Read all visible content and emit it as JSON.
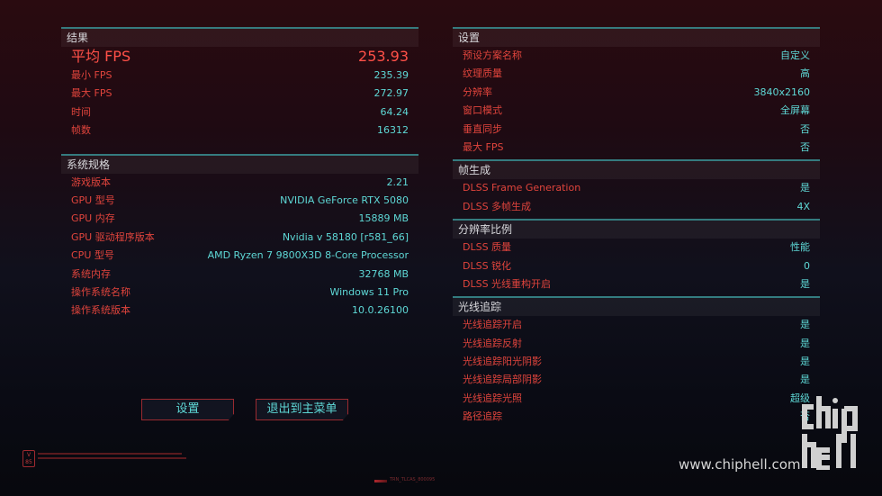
{
  "results": {
    "title": "结果",
    "avg_label": "平均 FPS",
    "avg_value": "253.93",
    "rows": [
      {
        "label": "最小 FPS",
        "value": "235.39"
      },
      {
        "label": "最大 FPS",
        "value": "272.97"
      },
      {
        "label": "时间",
        "value": "64.24"
      },
      {
        "label": "帧数",
        "value": "16312"
      }
    ]
  },
  "system": {
    "title": "系统规格",
    "rows": [
      {
        "label": "游戏版本",
        "value": "2.21"
      },
      {
        "label": "GPU 型号",
        "value": "NVIDIA GeForce RTX 5080"
      },
      {
        "label": "GPU 内存",
        "value": "15889 MB"
      },
      {
        "label": "GPU 驱动程序版本",
        "value": "Nvidia v 58180 [r581_66]"
      },
      {
        "label": "CPU 型号",
        "value": "AMD Ryzen 7 9800X3D 8-Core Processor"
      },
      {
        "label": "系统内存",
        "value": "32768 MB"
      },
      {
        "label": "操作系统名称",
        "value": "Windows 11 Pro"
      },
      {
        "label": "操作系统版本",
        "value": "10.0.26100"
      }
    ]
  },
  "settings": {
    "title": "设置",
    "rows": [
      {
        "label": "预设方案名称",
        "value": "自定义"
      },
      {
        "label": "纹理质量",
        "value": "高"
      },
      {
        "label": "分辨率",
        "value": "3840x2160"
      },
      {
        "label": "窗口模式",
        "value": "全屏幕"
      },
      {
        "label": "垂直同步",
        "value": "否"
      },
      {
        "label": "最大 FPS",
        "value": "否"
      }
    ]
  },
  "framegen": {
    "title": "帧生成",
    "rows": [
      {
        "label": "DLSS Frame Generation",
        "value": "是"
      },
      {
        "label": "DLSS 多帧生成",
        "value": "4X"
      }
    ]
  },
  "scaling": {
    "title": "分辨率比例",
    "rows": [
      {
        "label": "DLSS 质量",
        "value": "性能"
      },
      {
        "label": "DLSS 锐化",
        "value": "0"
      },
      {
        "label": "DLSS 光线重构开启",
        "value": "是"
      }
    ]
  },
  "raytracing": {
    "title": "光线追踪",
    "rows": [
      {
        "label": "光线追踪开启",
        "value": "是"
      },
      {
        "label": "光线追踪反射",
        "value": "是"
      },
      {
        "label": "光线追踪阳光阴影",
        "value": "是"
      },
      {
        "label": "光线追踪局部阴影",
        "value": "是"
      },
      {
        "label": "光线追踪光照",
        "value": "超级"
      },
      {
        "label": "路径追踪",
        "value": "否"
      }
    ]
  },
  "buttons": {
    "settings": "设置",
    "exit": "退出到主菜单"
  },
  "footer": {
    "version_badge": "V 85",
    "code": "TRN_TLCAS_800095"
  },
  "watermark": {
    "url": "www.chiphell.com",
    "logo": "chip hell"
  },
  "colors": {
    "label": "#e0443c",
    "value": "#5ed8d6",
    "accent_line": "#3a8f92"
  }
}
